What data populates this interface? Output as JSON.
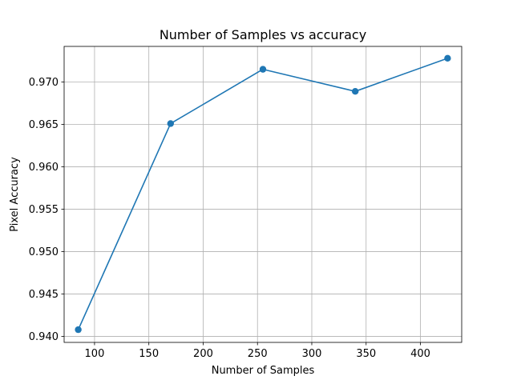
{
  "chart_data": {
    "type": "line",
    "title": "Number of Samples vs accuracy",
    "xlabel": "Number of Samples",
    "ylabel": "Pixel Accuracy",
    "xlim": [
      72,
      438
    ],
    "ylim": [
      0.9393,
      0.9742
    ],
    "xticks": [
      100,
      150,
      200,
      250,
      300,
      350,
      400
    ],
    "xtick_labels": [
      "100",
      "150",
      "200",
      "250",
      "300",
      "350",
      "400"
    ],
    "yticks": [
      0.94,
      0.945,
      0.95,
      0.955,
      0.96,
      0.965,
      0.97
    ],
    "ytick_labels": [
      "0.940",
      "0.945",
      "0.950",
      "0.955",
      "0.960",
      "0.965",
      "0.970"
    ],
    "grid": true,
    "series": [
      {
        "color": "#1f77b4",
        "marker": "circle",
        "x": [
          85,
          170,
          255,
          340,
          425
        ],
        "y": [
          0.9408,
          0.9651,
          0.9715,
          0.9689,
          0.9728
        ]
      }
    ]
  }
}
